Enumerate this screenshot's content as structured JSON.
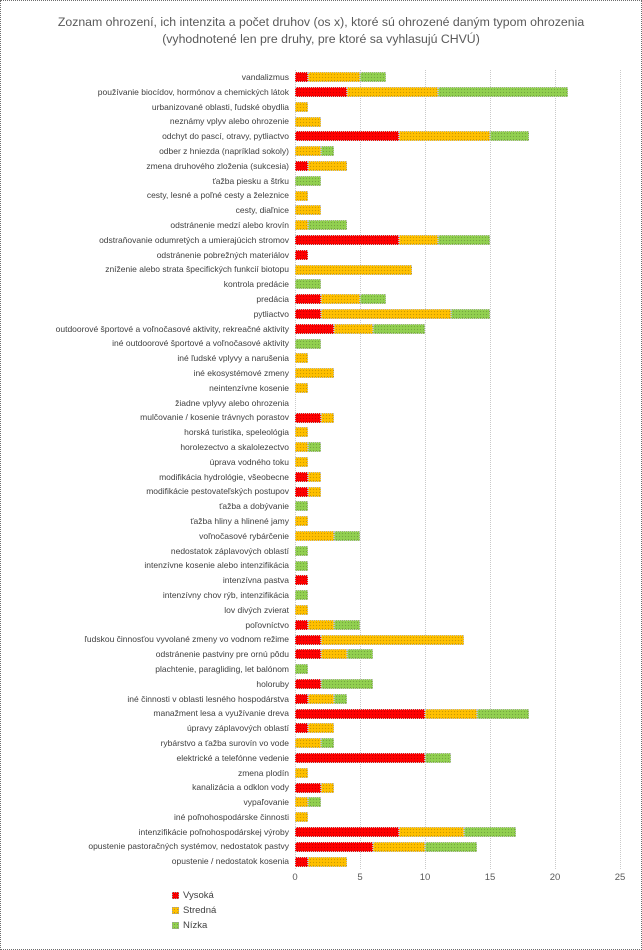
{
  "title": "Zoznam ohrození, ich intenzita a počet druhov (os x), ktoré sú ohrozené daným typom ohrozenia (vyhodnotené len pre druhy, pre ktoré sa vyhlasujú CHVÚ)",
  "colors": {
    "high": "#ff0000",
    "medium": "#ffc000",
    "low": "#92d050"
  },
  "chart_data": {
    "type": "bar",
    "orientation": "horizontal",
    "stacked": true,
    "title": "Zoznam ohrození, ich intenzita a počet druhov (os x), ktoré sú ohrozené daným typom ohrozenia (vyhodnotené len pre druhy, pre ktoré sa vyhlasujú CHVÚ)",
    "xlim": [
      0,
      25
    ],
    "x_ticks": [
      0,
      5,
      10,
      15,
      20,
      25
    ],
    "grid": "vertical-dotted",
    "legend_position": "bottom-left",
    "categories": [
      "vandalizmus",
      "používanie biocídov, hormónov a chemických látok",
      "urbanizované oblasti, ľudské obydlia",
      "neznámy vplyv alebo ohrozenie",
      "odchyt do pascí, otravy, pytliactvo",
      "odber z hniezda (napríklad sokoly)",
      "zmena druhového zloženia (sukcesia)",
      "ťažba piesku a štrku",
      "cesty, lesné a poľné cesty a železnice",
      "cesty, diaľnice",
      "odstránenie medzí alebo krovín",
      "odstraňovanie odumretých a umierajúcich stromov",
      "odstránenie pobrežných materiálov",
      "zníženie alebo strata špecifických funkcií biotopu",
      "kontrola predácie",
      "predácia",
      "pytliactvo",
      "outdoorové športové a voľnočasové aktivity, rekreačné aktivity",
      "iné outdoorové športové a voľnočasové aktivity",
      "iné ľudské vplyvy a narušenia",
      "iné ekosystémové zmeny",
      "neintenzívne kosenie",
      "žiadne vplyvy alebo ohrozenia",
      "mulčovanie / kosenie trávnych porastov",
      "horská turistika, speleológia",
      "horolezectvo a skalolezectvo",
      "úprava vodného toku",
      "modifikácia hydrológie, všeobecne",
      "modifikácie pestovateľských postupov",
      "ťažba a dobývanie",
      "ťažba hliny a hlinené jamy",
      "voľnočasové rybárčenie",
      "nedostatok záplavových oblastí",
      "intenzívne kosenie alebo intenzifikácia",
      "intenzívna pastva",
      "intenzívny chov rýb, intenzifikácia",
      "lov divých zvierat",
      "poľovníctvo",
      "ľudskou činnosťou vyvolané zmeny vo vodnom režime",
      "odstránenie pastviny pre ornú pôdu",
      "plachtenie, paragliding, let balónom",
      "holoruby",
      "iné činnosti v oblasti lesného hospodárstva",
      "manažment lesa a využívanie dreva",
      "úpravy  záplavových oblastí",
      "rybárstvo a ťažba surovín vo vode",
      "elektrické a telefónne vedenie",
      "zmena plodín",
      "kanalizácia a odklon vody",
      "vypaľovanie",
      "iné poľnohospodárske činnosti",
      "intenzifikácie poľnohospodárskej výroby",
      "opustenie pastoračných systémov, nedostatok pastvy",
      "opustenie / nedostatok kosenia"
    ],
    "series": [
      {
        "name": "Vysoká",
        "color": "#ff0000",
        "values": [
          1,
          4,
          0,
          0,
          8,
          0,
          1,
          0,
          0,
          0,
          0,
          8,
          1,
          0,
          0,
          2,
          2,
          3,
          0,
          0,
          0,
          0,
          0,
          2,
          0,
          0,
          0,
          1,
          1,
          0,
          0,
          0,
          0,
          0,
          1,
          0,
          0,
          1,
          2,
          2,
          0,
          2,
          1,
          10,
          1,
          0,
          10,
          0,
          2,
          0,
          0,
          8,
          6,
          1
        ]
      },
      {
        "name": "Stredná",
        "color": "#ffc000",
        "values": [
          4,
          7,
          1,
          2,
          7,
          2,
          3,
          0,
          1,
          2,
          1,
          3,
          0,
          9,
          0,
          3,
          10,
          3,
          0,
          1,
          3,
          1,
          0,
          1,
          1,
          1,
          1,
          1,
          1,
          0,
          1,
          3,
          0,
          0,
          0,
          0,
          1,
          2,
          11,
          2,
          0,
          0,
          2,
          4,
          2,
          2,
          0,
          1,
          1,
          1,
          1,
          5,
          4,
          3
        ]
      },
      {
        "name": "Nízka",
        "color": "#92d050",
        "values": [
          2,
          10,
          0,
          0,
          3,
          1,
          0,
          2,
          0,
          0,
          3,
          4,
          0,
          0,
          2,
          2,
          3,
          4,
          2,
          0,
          0,
          0,
          0,
          0,
          0,
          1,
          0,
          0,
          0,
          1,
          0,
          2,
          1,
          1,
          0,
          1,
          0,
          2,
          0,
          2,
          1,
          4,
          1,
          4,
          0,
          1,
          2,
          0,
          0,
          1,
          0,
          4,
          4,
          0
        ]
      }
    ]
  }
}
